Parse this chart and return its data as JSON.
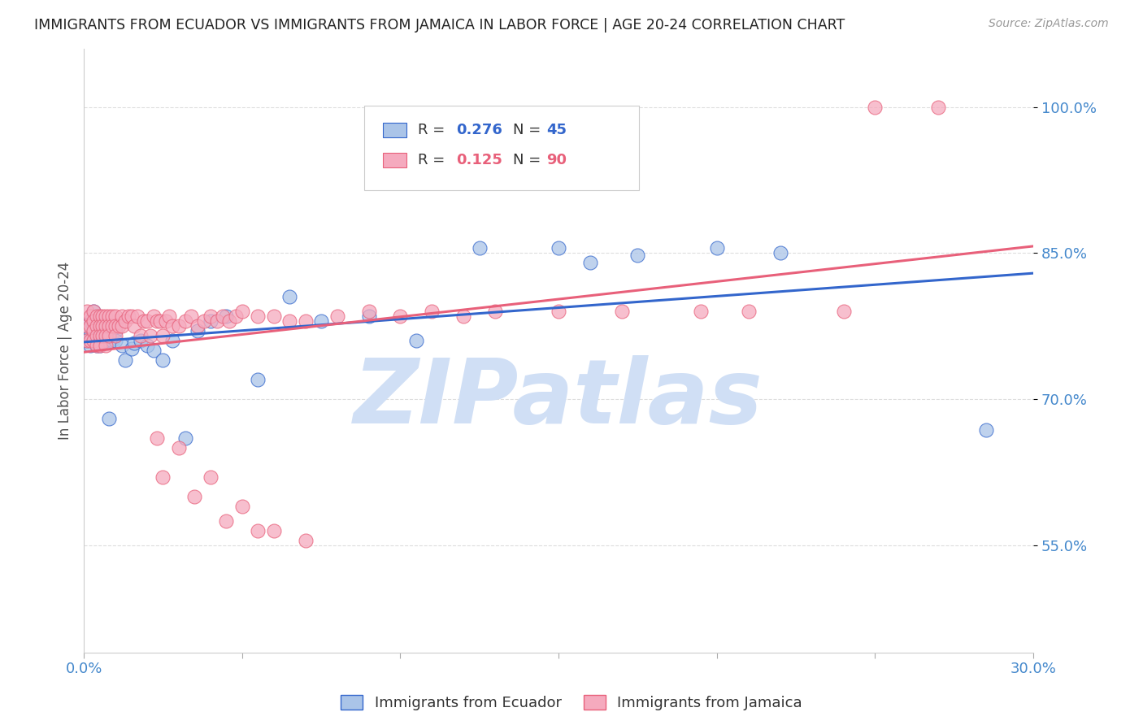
{
  "title": "IMMIGRANTS FROM ECUADOR VS IMMIGRANTS FROM JAMAICA IN LABOR FORCE | AGE 20-24 CORRELATION CHART",
  "source": "Source: ZipAtlas.com",
  "ylabel": "In Labor Force | Age 20-24",
  "xlim": [
    0.0,
    0.3
  ],
  "ylim": [
    0.44,
    1.06
  ],
  "xticks": [
    0.0,
    0.05,
    0.1,
    0.15,
    0.2,
    0.25,
    0.3
  ],
  "xticklabels": [
    "0.0%",
    "",
    "",
    "",
    "",
    "",
    "30.0%"
  ],
  "yticks": [
    0.55,
    0.7,
    0.85,
    1.0
  ],
  "yticklabels": [
    "55.0%",
    "70.0%",
    "85.0%",
    "100.0%"
  ],
  "ecuador_color": "#aac4e8",
  "jamaica_color": "#f5aabe",
  "line_ecuador_color": "#3366cc",
  "line_jamaica_color": "#e8607a",
  "watermark": "ZIPatlas",
  "watermark_color": "#d0dff5",
  "background_color": "#ffffff",
  "grid_color": "#dddddd",
  "title_color": "#222222",
  "axis_color": "#4488cc",
  "ecuador_x": [
    0.001,
    0.001,
    0.002,
    0.002,
    0.002,
    0.003,
    0.003,
    0.003,
    0.004,
    0.004,
    0.004,
    0.005,
    0.005,
    0.005,
    0.006,
    0.007,
    0.008,
    0.009,
    0.01,
    0.01,
    0.012,
    0.013,
    0.015,
    0.016,
    0.018,
    0.02,
    0.022,
    0.025,
    0.028,
    0.032,
    0.036,
    0.04,
    0.045,
    0.055,
    0.065,
    0.075,
    0.09,
    0.105,
    0.125,
    0.15,
    0.16,
    0.175,
    0.2,
    0.22,
    0.285
  ],
  "ecuador_y": [
    0.775,
    0.76,
    0.78,
    0.765,
    0.755,
    0.79,
    0.775,
    0.76,
    0.78,
    0.768,
    0.755,
    0.775,
    0.765,
    0.755,
    0.76,
    0.76,
    0.68,
    0.76,
    0.77,
    0.76,
    0.755,
    0.74,
    0.752,
    0.758,
    0.76,
    0.755,
    0.75,
    0.74,
    0.76,
    0.66,
    0.77,
    0.78,
    0.785,
    0.72,
    0.805,
    0.78,
    0.785,
    0.76,
    0.855,
    0.855,
    0.84,
    0.848,
    0.855,
    0.85,
    0.668
  ],
  "jamaica_x": [
    0.001,
    0.001,
    0.001,
    0.002,
    0.002,
    0.002,
    0.003,
    0.003,
    0.003,
    0.003,
    0.004,
    0.004,
    0.004,
    0.004,
    0.005,
    0.005,
    0.005,
    0.005,
    0.006,
    0.006,
    0.006,
    0.007,
    0.007,
    0.007,
    0.007,
    0.008,
    0.008,
    0.008,
    0.009,
    0.009,
    0.01,
    0.01,
    0.01,
    0.011,
    0.012,
    0.012,
    0.013,
    0.014,
    0.015,
    0.016,
    0.017,
    0.018,
    0.019,
    0.02,
    0.021,
    0.022,
    0.023,
    0.024,
    0.025,
    0.026,
    0.027,
    0.028,
    0.03,
    0.032,
    0.034,
    0.036,
    0.038,
    0.04,
    0.042,
    0.044,
    0.046,
    0.048,
    0.05,
    0.055,
    0.06,
    0.065,
    0.07,
    0.08,
    0.09,
    0.1,
    0.11,
    0.12,
    0.13,
    0.15,
    0.17,
    0.195,
    0.21,
    0.24,
    0.25,
    0.27,
    0.023,
    0.03,
    0.04,
    0.05,
    0.06,
    0.07,
    0.025,
    0.035,
    0.045,
    0.055
  ],
  "jamaica_y": [
    0.79,
    0.775,
    0.76,
    0.785,
    0.775,
    0.76,
    0.79,
    0.78,
    0.77,
    0.76,
    0.785,
    0.775,
    0.765,
    0.755,
    0.785,
    0.775,
    0.765,
    0.755,
    0.785,
    0.775,
    0.765,
    0.785,
    0.775,
    0.765,
    0.755,
    0.785,
    0.775,
    0.765,
    0.785,
    0.775,
    0.785,
    0.775,
    0.765,
    0.775,
    0.785,
    0.775,
    0.78,
    0.785,
    0.785,
    0.775,
    0.785,
    0.765,
    0.78,
    0.78,
    0.765,
    0.785,
    0.78,
    0.78,
    0.765,
    0.78,
    0.785,
    0.775,
    0.775,
    0.78,
    0.785,
    0.775,
    0.78,
    0.785,
    0.78,
    0.785,
    0.78,
    0.785,
    0.79,
    0.785,
    0.785,
    0.78,
    0.78,
    0.785,
    0.79,
    0.785,
    0.79,
    0.785,
    0.79,
    0.79,
    0.79,
    0.79,
    0.79,
    0.79,
    1.0,
    1.0,
    0.66,
    0.65,
    0.62,
    0.59,
    0.565,
    0.555,
    0.62,
    0.6,
    0.575,
    0.565
  ],
  "figsize": [
    14.06,
    8.92
  ],
  "dpi": 100
}
